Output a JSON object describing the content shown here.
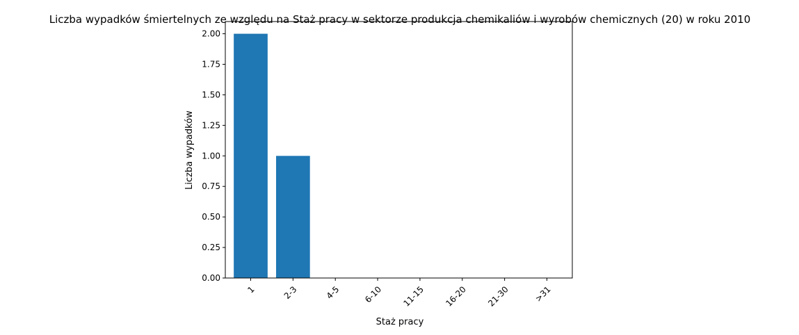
{
  "chart_data": {
    "type": "bar",
    "title": "Liczba wypadków śmiertelnych ze względu na Staż pracy w sektorze produkcja chemikaliów i wyrobów  chemicznych (20) w roku 2010",
    "xlabel": "Staż pracy",
    "ylabel": "Liczba wypadków",
    "categories": [
      "1",
      "2-3",
      "4-5",
      "6-10",
      "11-15",
      "16-20",
      "21-30",
      ">31"
    ],
    "values": [
      2,
      1,
      0,
      0,
      0,
      0,
      0,
      0
    ],
    "ylim": [
      0,
      2.1
    ],
    "yticks": [
      "0.00",
      "0.25",
      "0.50",
      "0.75",
      "1.00",
      "1.25",
      "1.50",
      "1.75",
      "2.00"
    ],
    "bar_color": "#1f77b4",
    "grid": false,
    "legend": "none"
  }
}
